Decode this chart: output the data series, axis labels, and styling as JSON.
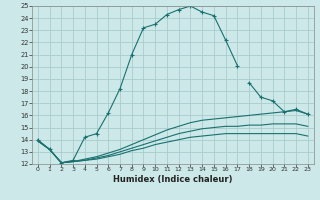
{
  "xlabel": "Humidex (Indice chaleur)",
  "xlim": [
    -0.5,
    23.5
  ],
  "ylim": [
    12,
    25
  ],
  "bg_color": "#cce8e8",
  "grid_color": "#aacccc",
  "line_color": "#1a7070",
  "x_ticks": [
    0,
    1,
    2,
    3,
    4,
    5,
    6,
    7,
    8,
    9,
    10,
    11,
    12,
    13,
    14,
    15,
    16,
    17,
    18,
    19,
    20,
    21,
    22,
    23
  ],
  "y_ticks": [
    12,
    13,
    14,
    15,
    16,
    17,
    18,
    19,
    20,
    21,
    22,
    23,
    24,
    25
  ],
  "series": [
    {
      "x": [
        0,
        1,
        2,
        3,
        4,
        5,
        6,
        7,
        8,
        9,
        10,
        11,
        12,
        13,
        14,
        15,
        16,
        17,
        18,
        19,
        20,
        21,
        22,
        23
      ],
      "y": [
        14.0,
        13.2,
        12.1,
        12.3,
        14.2,
        14.5,
        16.2,
        18.2,
        21.0,
        23.2,
        23.5,
        24.3,
        24.7,
        25.0,
        24.5,
        24.2,
        22.2,
        20.1,
        null,
        null,
        null,
        null,
        null,
        null
      ],
      "marker": true
    },
    {
      "x": [
        18,
        19,
        20,
        21,
        22,
        23
      ],
      "y": [
        18.7,
        17.5,
        17.2,
        16.3,
        16.5,
        16.1
      ],
      "marker": true
    },
    {
      "x": [
        0,
        1,
        2,
        3,
        4,
        5,
        6,
        7,
        8,
        9,
        10,
        11,
        12,
        13,
        14,
        15,
        16,
        17,
        18,
        19,
        20,
        21,
        22,
        23
      ],
      "y": [
        13.9,
        13.2,
        12.1,
        12.2,
        12.4,
        12.6,
        12.9,
        13.2,
        13.6,
        14.0,
        14.4,
        14.8,
        15.1,
        15.4,
        15.6,
        15.7,
        15.8,
        15.9,
        16.0,
        16.1,
        16.2,
        16.3,
        16.4,
        16.1
      ],
      "marker": false
    },
    {
      "x": [
        0,
        1,
        2,
        3,
        4,
        5,
        6,
        7,
        8,
        9,
        10,
        11,
        12,
        13,
        14,
        15,
        16,
        17,
        18,
        19,
        20,
        21,
        22,
        23
      ],
      "y": [
        13.9,
        13.2,
        12.1,
        12.2,
        12.3,
        12.5,
        12.7,
        13.0,
        13.3,
        13.6,
        13.9,
        14.2,
        14.5,
        14.7,
        14.9,
        15.0,
        15.1,
        15.1,
        15.2,
        15.2,
        15.3,
        15.3,
        15.3,
        15.1
      ],
      "marker": false
    },
    {
      "x": [
        0,
        1,
        2,
        3,
        4,
        5,
        6,
        7,
        8,
        9,
        10,
        11,
        12,
        13,
        14,
        15,
        16,
        17,
        18,
        19,
        20,
        21,
        22,
        23
      ],
      "y": [
        13.9,
        13.2,
        12.1,
        12.2,
        12.3,
        12.4,
        12.6,
        12.8,
        13.1,
        13.3,
        13.6,
        13.8,
        14.0,
        14.2,
        14.3,
        14.4,
        14.5,
        14.5,
        14.5,
        14.5,
        14.5,
        14.5,
        14.5,
        14.3
      ],
      "marker": false
    }
  ]
}
